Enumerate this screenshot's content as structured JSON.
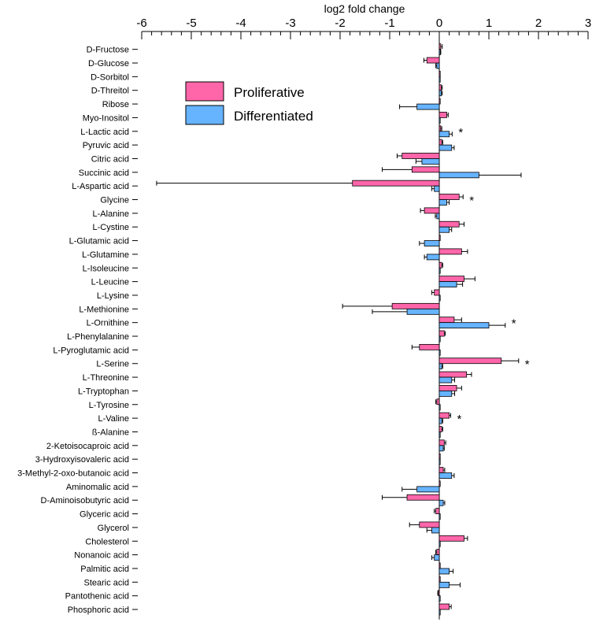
{
  "chart_data": {
    "type": "bar",
    "orientation": "horizontal",
    "title": "",
    "xlabel": "log2 fold change",
    "ylabel": "",
    "xlim": [
      -6,
      3
    ],
    "xticks": [
      "-6",
      "-5",
      "-4",
      "-3",
      "-2",
      "-1",
      "0",
      "1",
      "2",
      "3"
    ],
    "legend_position": "top-left",
    "categories": [
      "D-Fructose",
      "D-Glucose",
      "D-Sorbitol",
      "D-Threitol",
      "Ribose",
      "Myo-Inositol",
      "L-Lactic acid",
      "Pyruvic acid",
      "Citric acid",
      "Succinic acid",
      "L-Aspartic acid",
      "Glycine",
      "L-Alanine",
      "L-Cystine",
      "L-Glutamic acid",
      "L-Glutamine",
      "L-Isoleucine",
      "L-Leucine",
      "L-Lysine",
      "L-Methionine",
      "L-Ornithine",
      "L-Phenylalanine",
      "L-Pyroglutamic acid",
      "L-Serine",
      "L-Threonine",
      "L-Tryptophan",
      "L-Tyrosine",
      "L-Valine",
      "ß-Alanine",
      "2-Ketoisocaproic acid",
      "3-Hydroxyisovaleric acid",
      "3-Methyl-2-oxo-butanoic acid",
      "Aminomalic acid",
      "D-Aminoisobutyric acid",
      "Glyceric acid",
      "Glycerol",
      "Cholesterol",
      "Nonanoic acid",
      "Palmitic acid",
      "Stearic acid",
      "Pantothenic acid",
      "Phosphoric acid"
    ],
    "series": [
      {
        "name": "Proliferative",
        "color": "#ff66aa",
        "values": [
          0.03,
          -0.25,
          0.0,
          0.04,
          0.0,
          0.15,
          0.03,
          0.05,
          -0.75,
          -0.55,
          -1.75,
          0.4,
          -0.3,
          0.4,
          0.0,
          0.45,
          0.05,
          0.5,
          -0.1,
          -0.95,
          0.3,
          0.1,
          -0.4,
          1.25,
          0.55,
          0.35,
          -0.05,
          0.2,
          0.05,
          0.1,
          0.0,
          0.08,
          0.0,
          -0.65,
          -0.07,
          -0.4,
          0.5,
          -0.05,
          0.0,
          0.0,
          -0.02,
          0.2
        ],
        "errors": [
          0.03,
          0.06,
          0.0,
          0.02,
          0.0,
          0.03,
          0.02,
          0.02,
          0.1,
          0.6,
          3.95,
          0.08,
          0.08,
          0.1,
          0.0,
          0.12,
          0.02,
          0.22,
          0.05,
          1.0,
          0.15,
          0.02,
          0.15,
          0.35,
          0.1,
          0.1,
          0.02,
          0.03,
          0.02,
          0.03,
          0.0,
          0.03,
          0.0,
          0.5,
          0.03,
          0.2,
          0.07,
          0.02,
          0.0,
          0.0,
          0.01,
          0.04
        ]
      },
      {
        "name": "Differentiated",
        "color": "#66b3ff",
        "values": [
          0.02,
          -0.05,
          0.0,
          0.04,
          -0.45,
          0.0,
          0.2,
          0.25,
          -0.35,
          0.8,
          -0.1,
          0.15,
          -0.05,
          0.2,
          -0.3,
          -0.25,
          0.0,
          0.35,
          0.0,
          -0.65,
          1.0,
          0.0,
          0.0,
          0.05,
          0.25,
          0.25,
          0.0,
          0.05,
          0.0,
          0.08,
          0.0,
          0.25,
          -0.45,
          0.08,
          0.0,
          -0.15,
          0.0,
          -0.1,
          0.2,
          0.2,
          0.0,
          0.0
        ],
        "errors": [
          0.01,
          0.02,
          0.0,
          0.02,
          0.35,
          0.0,
          0.06,
          0.05,
          0.12,
          0.85,
          0.05,
          0.05,
          0.03,
          0.05,
          0.1,
          0.05,
          0.0,
          0.12,
          0.0,
          0.7,
          0.33,
          0.0,
          0.0,
          0.02,
          0.06,
          0.06,
          0.0,
          0.02,
          0.0,
          0.02,
          0.0,
          0.05,
          0.3,
          0.03,
          0.0,
          0.1,
          0.0,
          0.05,
          0.08,
          0.22,
          0.0,
          0.0
        ]
      }
    ],
    "significance_marker": "*",
    "significant": [
      "L-Lactic acid",
      "Glycine",
      "L-Ornithine",
      "L-Serine",
      "L-Valine"
    ]
  }
}
